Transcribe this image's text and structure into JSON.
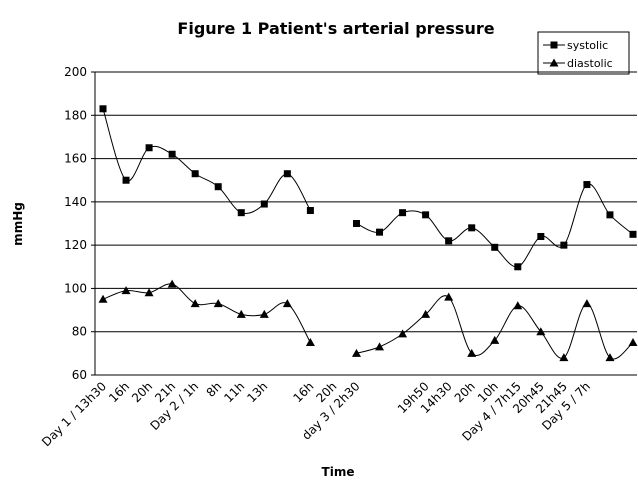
{
  "chart_data": {
    "type": "line",
    "title": "Figure 1 Patient's arterial pressure",
    "x_label": "Time",
    "y_label": "mmHg",
    "categories": [
      "Day 1 / 13h30",
      "16h",
      "20h",
      "21h",
      "Day 2 / 1h",
      "8h",
      "11h",
      "13h",
      null,
      "16h",
      "20h",
      "day 3 / 2h30",
      null,
      null,
      "19h50",
      "14h30",
      "20h",
      "10h",
      "Day 4 / 7h15",
      "20h45",
      "21h45",
      "Day 5 / 7h",
      null,
      null
    ],
    "series": [
      {
        "name": "systolic",
        "color": "#000000",
        "marker": "square",
        "values": [
          183,
          150,
          165,
          162,
          153,
          147,
          135,
          139,
          153,
          136,
          null,
          130,
          126,
          135,
          134,
          122,
          128,
          119,
          110,
          124,
          120,
          148,
          134,
          125
        ]
      },
      {
        "name": "diastolic",
        "color": "#000000",
        "marker": "triangle",
        "values": [
          95,
          99,
          98,
          102,
          93,
          93,
          88,
          88,
          93,
          75,
          null,
          70,
          73,
          79,
          88,
          96,
          70,
          76,
          92,
          80,
          68,
          93,
          68,
          75
        ]
      }
    ],
    "ylim": [
      60,
      200
    ],
    "yticks": [
      60,
      80,
      100,
      120,
      140,
      160,
      180,
      200
    ],
    "grid": true,
    "smooth": true,
    "legend": "top-right"
  }
}
